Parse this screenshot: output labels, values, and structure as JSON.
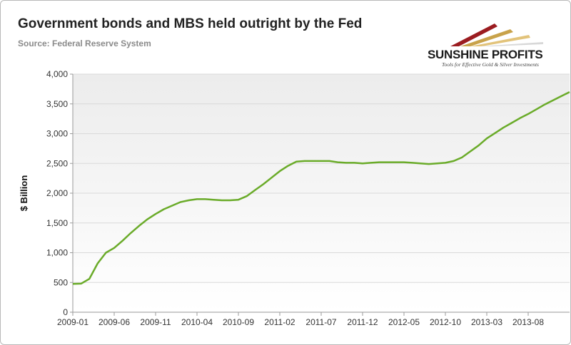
{
  "header": {
    "title": "Government bonds and MBS held outright by the Fed",
    "source": "Source: Federal Reserve System"
  },
  "logo": {
    "name": "SUNSHINE PROFITS",
    "tagline": "Tools for Effective Gold & Silver Investments",
    "icon": "sunrise-rays-logo"
  },
  "colors": {
    "line": "#6aab29",
    "grid": "#d9d9d9",
    "plot_gradient_top": "#ececec",
    "plot_gradient_bottom": "#ffffff"
  },
  "chart_data": {
    "type": "line",
    "title": "Government bonds and MBS held outright by the Fed",
    "subtitle": "Source: Federal Reserve System",
    "xlabel": "",
    "ylabel": "$ Billion",
    "ylim": [
      0,
      4000
    ],
    "yticks": [
      0,
      500,
      1000,
      1500,
      2000,
      2500,
      3000,
      3500,
      4000
    ],
    "ytick_labels": [
      "0",
      "500",
      "1,000",
      "1,500",
      "2,000",
      "2,500",
      "3,000",
      "3,500",
      "4,000"
    ],
    "xlim": [
      "2009-01",
      "2014-01"
    ],
    "xtick_labels": [
      "2009-01",
      "2009-06",
      "2009-11",
      "2010-04",
      "2010-09",
      "2011-02",
      "2011-07",
      "2011-12",
      "2012-05",
      "2012-10",
      "2013-03",
      "2013-08"
    ],
    "grid": "horizontal",
    "legend": "none",
    "series": [
      {
        "x": [
          "2009-01",
          "2009-02",
          "2009-03",
          "2009-04",
          "2009-05",
          "2009-06",
          "2009-07",
          "2009-08",
          "2009-09",
          "2009-10",
          "2009-11",
          "2009-12",
          "2010-01",
          "2010-02",
          "2010-03",
          "2010-04",
          "2010-05",
          "2010-06",
          "2010-07",
          "2010-08",
          "2010-09",
          "2010-10",
          "2010-11",
          "2010-12",
          "2011-01",
          "2011-02",
          "2011-03",
          "2011-04",
          "2011-05",
          "2011-06",
          "2011-07",
          "2011-08",
          "2011-09",
          "2011-10",
          "2011-11",
          "2011-12",
          "2012-01",
          "2012-02",
          "2012-03",
          "2012-04",
          "2012-05",
          "2012-06",
          "2012-07",
          "2012-08",
          "2012-09",
          "2012-10",
          "2012-11",
          "2012-12",
          "2013-01",
          "2013-02",
          "2013-03",
          "2013-04",
          "2013-05",
          "2013-06",
          "2013-07",
          "2013-08",
          "2013-09",
          "2013-10",
          "2013-11",
          "2013-12",
          "2014-01"
        ],
        "values": [
          475,
          480,
          560,
          820,
          1000,
          1080,
          1200,
          1330,
          1450,
          1560,
          1650,
          1730,
          1790,
          1850,
          1880,
          1900,
          1900,
          1890,
          1880,
          1880,
          1890,
          1950,
          2050,
          2150,
          2260,
          2370,
          2460,
          2530,
          2540,
          2540,
          2540,
          2540,
          2520,
          2510,
          2510,
          2500,
          2510,
          2520,
          2520,
          2520,
          2520,
          2510,
          2500,
          2490,
          2500,
          2510,
          2540,
          2600,
          2700,
          2800,
          2920,
          3010,
          3100,
          3180,
          3260,
          3330,
          3410,
          3490,
          3560,
          3630,
          3700
        ]
      }
    ]
  }
}
